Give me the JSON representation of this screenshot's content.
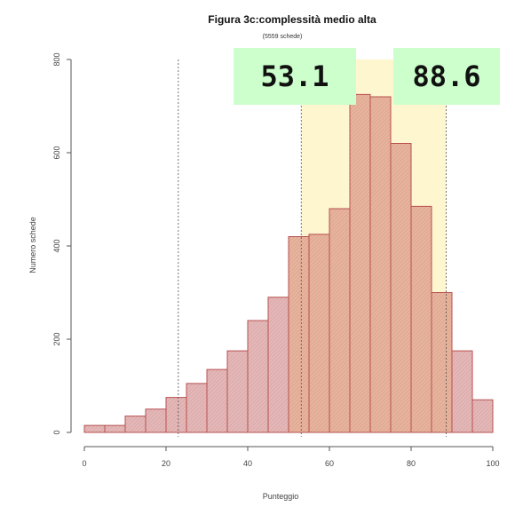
{
  "chart_data": {
    "type": "bar",
    "title": "Figura 3c:complessità medio alta",
    "subtitle": "(5559 schede)",
    "xlabel": "Punteggio",
    "ylabel": "Numero schede",
    "xlim": [
      0,
      100
    ],
    "ylim": [
      0,
      800
    ],
    "bin_width": 5,
    "bin_starts": [
      0,
      5,
      10,
      15,
      20,
      25,
      30,
      35,
      40,
      45,
      50,
      55,
      60,
      65,
      70,
      75,
      80,
      85,
      90,
      95
    ],
    "values": [
      15,
      15,
      35,
      50,
      75,
      105,
      135,
      175,
      240,
      290,
      420,
      425,
      480,
      725,
      720,
      620,
      485,
      300,
      175,
      70
    ],
    "x_ticks": [
      "0",
      "20",
      "40",
      "60",
      "80",
      "100"
    ],
    "y_ticks": [
      "0",
      "200",
      "400",
      "600",
      "800"
    ],
    "x_tick_values": [
      0,
      20,
      40,
      60,
      80,
      100
    ],
    "y_tick_values": [
      0,
      200,
      400,
      600,
      800
    ],
    "reference_lines": [
      23,
      53.1,
      88.6
    ],
    "shaded_band": [
      53.1,
      88.6
    ],
    "grid": false,
    "colors": {
      "bar_fill": "#e3b8b8",
      "bar_fill_band": "#e6b49c",
      "bar_stroke": "#b85050",
      "band": "#fdf6cf"
    }
  },
  "callouts": {
    "left": "53.1",
    "right": "88.6"
  }
}
